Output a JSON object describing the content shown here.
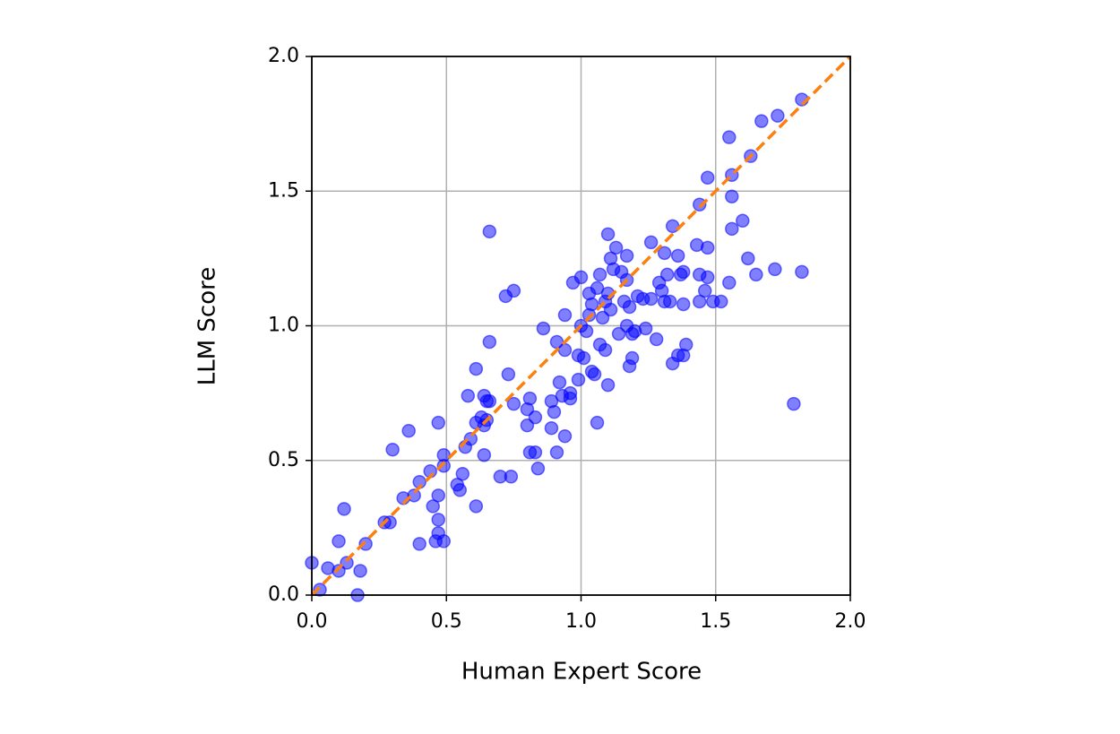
{
  "chart_data": {
    "type": "scatter",
    "x_label": "Human Expert Score",
    "y_label": "LLM Score",
    "x": [
      0,
      0.03,
      0.06,
      0.1,
      0.1,
      0.12,
      0.13,
      0.17,
      0.18,
      0.2,
      0.27,
      0.29,
      0.3,
      0.34,
      0.36,
      0.38,
      0.4,
      0.4,
      0.44,
      0.45,
      0.46,
      0.47,
      0.47,
      0.47,
      0.47,
      0.49,
      0.49,
      0.49,
      0.54,
      0.55,
      0.56,
      0.57,
      0.58,
      0.59,
      0.61,
      0.61,
      0.61,
      0.63,
      0.64,
      0.64,
      0.64,
      0.65,
      0.65,
      0.66,
      0.66,
      0.66,
      0.7,
      0.72,
      0.73,
      0.75,
      0.74,
      0.75,
      0.8,
      0.8,
      0.81,
      0.81,
      0.83,
      0.83,
      0.84,
      0.86,
      0.89,
      0.89,
      0.9,
      0.91,
      0.91,
      0.92,
      0.93,
      0.94,
      0.94,
      0.94,
      0.96,
      0.96,
      0.97,
      0.99,
      0.99,
      1.0,
      1.0,
      1.01,
      1.02,
      1.03,
      1.03,
      1.04,
      1.04,
      1.05,
      1.06,
      1.06,
      1.07,
      1.07,
      1.08,
      1.09,
      1.09,
      1.1,
      1.1,
      1.11,
      1.1,
      1.11,
      1.12,
      1.13,
      1.14,
      1.15,
      1.16,
      1.17,
      1.17,
      1.17,
      1.18,
      1.18,
      1.19,
      1.19,
      1.2,
      1.21,
      1.23,
      1.24,
      1.26,
      1.26,
      1.28,
      1.29,
      1.3,
      1.31,
      1.31,
      1.32,
      1.33,
      1.34,
      1.34,
      1.36,
      1.36,
      1.37,
      1.38,
      1.38,
      1.38,
      1.39,
      1.43,
      1.44,
      1.44,
      1.44,
      1.46,
      1.47,
      1.47,
      1.47,
      1.49,
      1.52,
      1.55,
      1.55,
      1.56,
      1.56,
      1.56,
      1.6,
      1.62,
      1.63,
      1.65,
      1.67,
      1.72,
      1.73,
      1.79,
      1.82,
      1.82
    ],
    "values": [
      0.12,
      0.02,
      0.1,
      0.09,
      0.2,
      0.32,
      0.12,
      0.0,
      0.09,
      0.19,
      0.27,
      0.27,
      0.54,
      0.36,
      0.61,
      0.37,
      0.42,
      0.19,
      0.46,
      0.33,
      0.2,
      0.64,
      0.37,
      0.23,
      0.28,
      0.48,
      0.52,
      0.2,
      0.41,
      0.39,
      0.45,
      0.55,
      0.74,
      0.58,
      0.64,
      0.84,
      0.33,
      0.66,
      0.74,
      0.52,
      0.63,
      0.72,
      0.65,
      1.35,
      0.94,
      0.72,
      0.44,
      1.11,
      0.82,
      1.13,
      0.44,
      0.71,
      0.69,
      0.63,
      0.53,
      0.73,
      0.53,
      0.66,
      0.47,
      0.99,
      0.72,
      0.62,
      0.68,
      0.53,
      0.94,
      0.79,
      0.74,
      0.59,
      0.91,
      1.04,
      0.75,
      0.73,
      1.16,
      0.8,
      0.89,
      1.18,
      1.0,
      0.88,
      0.98,
      1.12,
      1.04,
      1.08,
      0.83,
      0.82,
      1.14,
      0.64,
      1.19,
      0.93,
      1.03,
      0.91,
      1.09,
      1.12,
      1.34,
      1.06,
      0.78,
      1.25,
      1.21,
      1.29,
      0.97,
      1.2,
      1.09,
      1.17,
      1.0,
      1.26,
      1.07,
      0.85,
      0.88,
      0.97,
      0.98,
      1.11,
      1.1,
      0.99,
      1.1,
      1.31,
      0.95,
      1.16,
      1.13,
      1.27,
      1.09,
      1.19,
      1.09,
      0.86,
      1.37,
      1.26,
      0.89,
      1.19,
      1.2,
      1.08,
      0.89,
      0.93,
      1.3,
      1.09,
      1.45,
      1.19,
      1.13,
      1.18,
      1.29,
      1.55,
      1.09,
      1.09,
      1.7,
      1.16,
      1.36,
      1.48,
      1.56,
      1.39,
      1.25,
      1.63,
      1.19,
      1.76,
      1.21,
      1.78,
      0.71,
      1.84,
      1.2
    ],
    "color": "#0000ff",
    "reference_line_color": "#ff7f0e",
    "xlim": [
      0,
      2
    ],
    "ylim": [
      0,
      2
    ],
    "xticks": [
      {
        "value": 0,
        "label": "0.0"
      },
      0.5,
      {
        "value": 1,
        "label": "1.0"
      },
      1.5,
      {
        "value": 2,
        "label": "2.0"
      }
    ],
    "yticks": [
      {
        "value": 0,
        "label": "0.0"
      },
      0.5,
      {
        "value": 1,
        "label": "1.0"
      },
      1.5,
      {
        "value": 2,
        "label": "2.0"
      }
    ],
    "grid": true
  }
}
